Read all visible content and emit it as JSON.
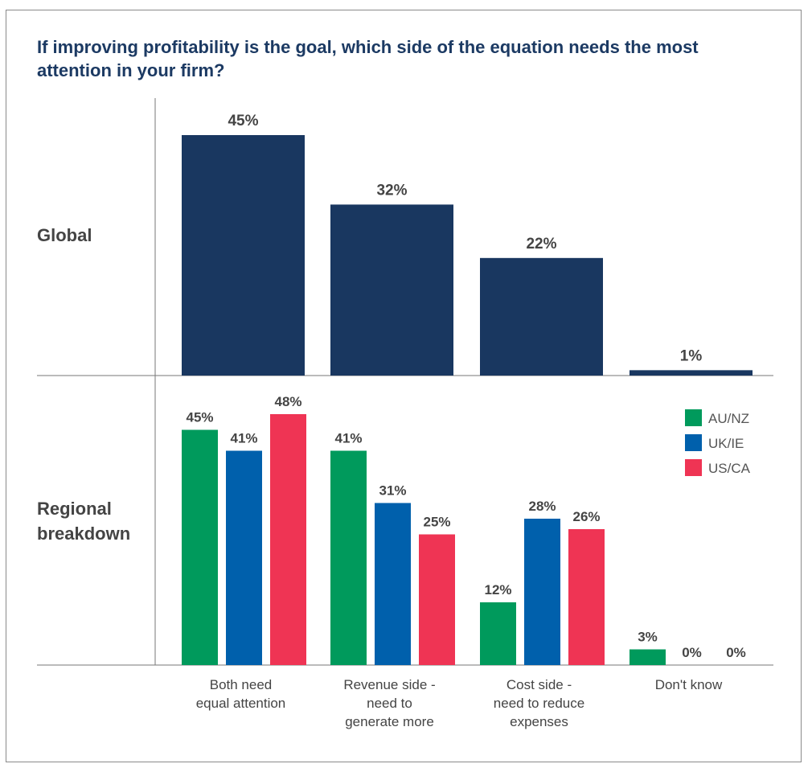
{
  "title": "If improving profitability is the goal, which side of the equation needs the most attention in your firm?",
  "colors": {
    "global": "#193760",
    "AU/NZ": "#009a5c",
    "UK/IE": "#0060ac",
    "US/CA": "#ef3454",
    "axis": "#777777"
  },
  "chart_data": [
    {
      "type": "bar",
      "panel": "Global",
      "categories": [
        [
          "Both need",
          "equal attention"
        ],
        [
          "Revenue side -",
          "need to",
          "generate more"
        ],
        [
          "Cost side -",
          "need to reduce",
          "expenses"
        ],
        [
          "Don't know"
        ]
      ],
      "values": [
        45,
        32,
        22,
        1
      ],
      "value_labels": [
        "45%",
        "32%",
        "22%",
        "1%"
      ],
      "ylim": [
        0,
        45
      ]
    },
    {
      "type": "bar",
      "panel": [
        "Regional",
        "breakdown"
      ],
      "legend_position": "top-right",
      "series": [
        {
          "name": "AU/NZ",
          "values": [
            45,
            41,
            12,
            3
          ],
          "labels": [
            "45%",
            "41%",
            "12%",
            "3%"
          ]
        },
        {
          "name": "UK/IE",
          "values": [
            41,
            31,
            28,
            0
          ],
          "labels": [
            "41%",
            "31%",
            "28%",
            "0%"
          ]
        },
        {
          "name": "US/CA",
          "values": [
            48,
            25,
            26,
            0
          ],
          "labels": [
            "48%",
            "25%",
            "26%",
            "0%"
          ]
        }
      ],
      "ylim": [
        0,
        48
      ]
    }
  ]
}
